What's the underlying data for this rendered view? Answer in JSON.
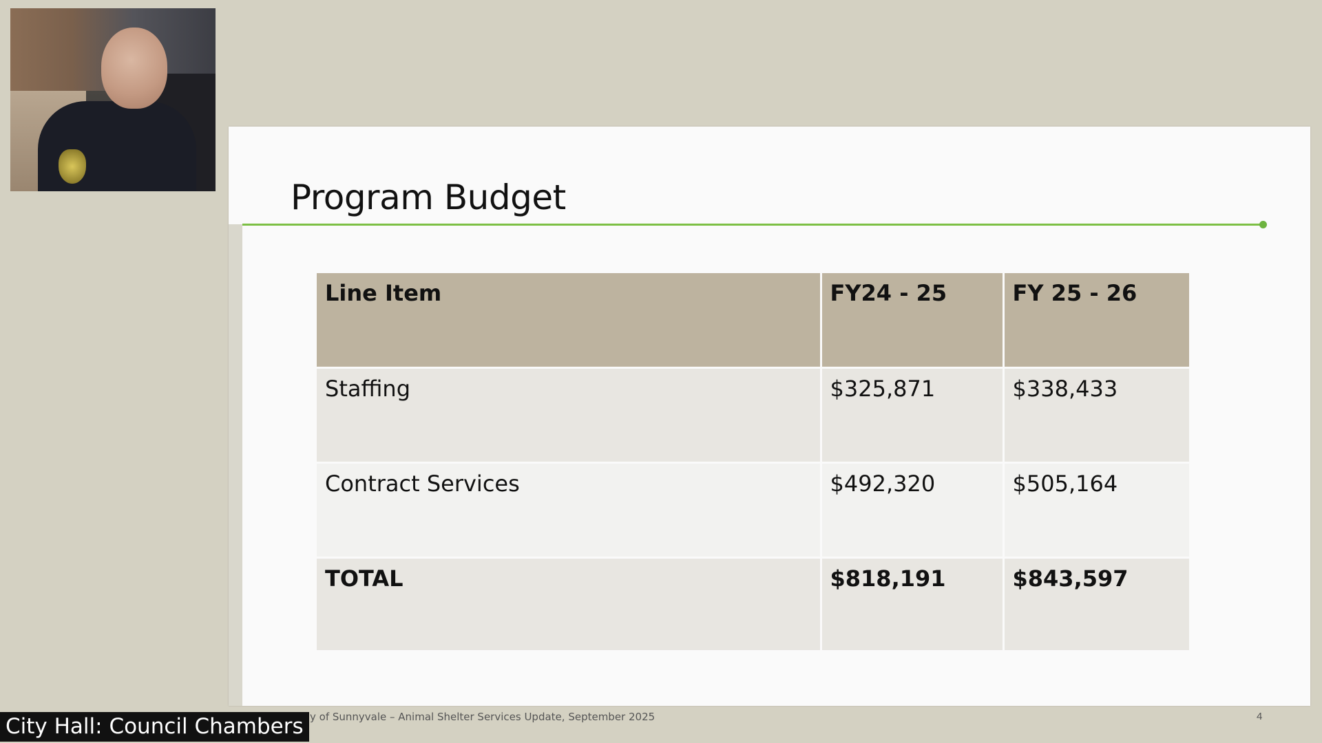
{
  "slide": {
    "title": "Program Budget",
    "table": {
      "headers": [
        "Line Item",
        "FY24 - 25",
        "FY 25 - 26"
      ],
      "rows": [
        [
          "Staffing",
          "$325,871",
          "$338,433"
        ],
        [
          "Contract Services",
          "$492,320",
          "$505,164"
        ]
      ],
      "total": [
        "TOTAL",
        "$818,191",
        "$843,597"
      ]
    },
    "footer": "y of Sunnyvale – Animal Shelter Services Update, September 2025",
    "page_number": "4"
  },
  "overlay": {
    "location_label": "City Hall: Council Chambers"
  },
  "colors": {
    "accent_rule": "#7cbf44",
    "header_fill": "#bdb39f",
    "background": "#d4d1c2"
  }
}
